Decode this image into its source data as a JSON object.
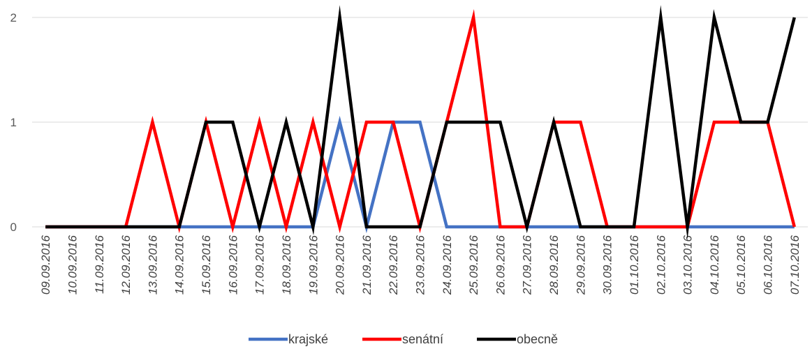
{
  "chart_data": {
    "type": "line",
    "categories": [
      "09.09.2016",
      "10.09.2016",
      "11.09.2016",
      "12.09.2016",
      "13.09.2016",
      "14.09.2016",
      "15.09.2016",
      "16.09.2016",
      "17.09.2016",
      "18.09.2016",
      "19.09.2016",
      "20.09.2016",
      "21.09.2016",
      "22.09.2016",
      "23.09.2016",
      "24.09.2016",
      "25.09.2016",
      "26.09.2016",
      "27.09.2016",
      "28.09.2016",
      "29.09.2016",
      "30.09.2016",
      "01.10.2016",
      "02.10.2016",
      "03.10.2016",
      "04.10.2016",
      "05.10.2016",
      "06.10.2016",
      "07.10.2016"
    ],
    "series": [
      {
        "name": "krajské",
        "color": "#4472c4",
        "values": [
          0,
          0,
          0,
          0,
          0,
          0,
          0,
          0,
          0,
          0,
          0,
          1,
          0,
          1,
          1,
          0,
          0,
          0,
          0,
          0,
          0,
          0,
          0,
          0,
          0,
          0,
          0,
          0,
          0
        ]
      },
      {
        "name": "senátní",
        "color": "#ff0000",
        "values": [
          0,
          0,
          0,
          0,
          1,
          0,
          1,
          0,
          1,
          0,
          1,
          0,
          1,
          1,
          0,
          1,
          2,
          0,
          0,
          1,
          1,
          0,
          0,
          0,
          0,
          1,
          1,
          1,
          0
        ]
      },
      {
        "name": "obecně",
        "color": "#000000",
        "values": [
          0,
          0,
          0,
          0,
          0,
          0,
          1,
          1,
          0,
          1,
          0,
          2,
          0,
          0,
          0,
          1,
          1,
          1,
          0,
          1,
          0,
          0,
          0,
          2,
          0,
          2,
          1,
          1,
          2
        ]
      }
    ],
    "ylim": [
      0,
      2
    ],
    "yticks": [
      0,
      1,
      2
    ],
    "grid": true,
    "legend": "bottom",
    "title": "",
    "xlabel": "",
    "ylabel": ""
  }
}
